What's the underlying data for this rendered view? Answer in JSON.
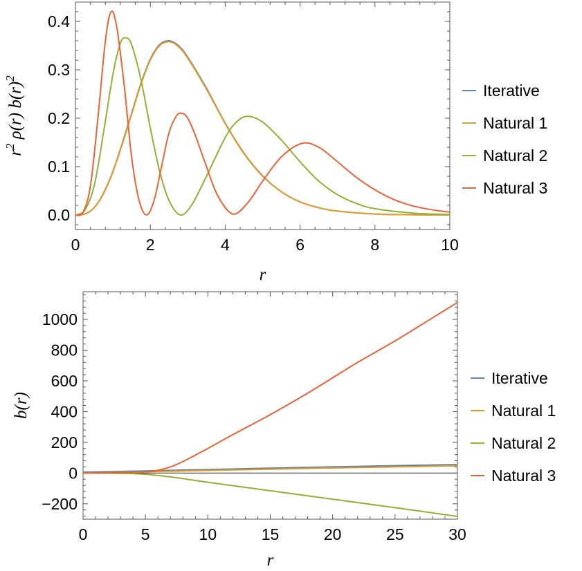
{
  "colors": {
    "Iterative": "#5E81B5",
    "Natural 1": "#E19C24",
    "Natural 2": "#8FB032",
    "Natural 3": "#EB6235"
  },
  "chart_data": [
    {
      "type": "line",
      "xlabel": "r",
      "ylabel_parts": [
        "r",
        "2",
        " ρ(r) b(r)",
        "2"
      ],
      "xlim": [
        0,
        10
      ],
      "ylim": [
        -0.03,
        0.44
      ],
      "xticks": [
        0,
        2,
        4,
        6,
        8,
        10
      ],
      "xtick_labels": [
        "0",
        "2",
        "4",
        "6",
        "8",
        "10"
      ],
      "yticks": [
        0.0,
        0.1,
        0.2,
        0.3,
        0.4
      ],
      "ytick_labels": [
        "0.0",
        "0.1",
        "0.2",
        "0.3",
        "0.4"
      ],
      "legend": "right",
      "grid": false,
      "series": [
        {
          "name": "Iterative",
          "x": [
            0,
            0.25,
            0.5,
            0.75,
            1,
            1.25,
            1.5,
            1.75,
            2,
            2.25,
            2.5,
            2.75,
            3,
            3.5,
            4,
            4.5,
            5,
            5.5,
            6,
            6.5,
            7,
            8,
            9,
            10
          ],
          "y": [
            0,
            0.002,
            0.015,
            0.045,
            0.09,
            0.148,
            0.21,
            0.272,
            0.322,
            0.352,
            0.36,
            0.35,
            0.326,
            0.262,
            0.19,
            0.128,
            0.081,
            0.048,
            0.027,
            0.015,
            0.008,
            0.002,
            0.0005,
            0
          ]
        },
        {
          "name": "Natural 1",
          "x": [
            0,
            0.25,
            0.5,
            0.75,
            1,
            1.25,
            1.5,
            1.75,
            2,
            2.25,
            2.5,
            2.75,
            3,
            3.5,
            4,
            4.5,
            5,
            5.5,
            6,
            6.5,
            7,
            8,
            9,
            10
          ],
          "y": [
            0,
            0.002,
            0.015,
            0.044,
            0.089,
            0.146,
            0.208,
            0.27,
            0.32,
            0.35,
            0.358,
            0.348,
            0.324,
            0.26,
            0.189,
            0.127,
            0.08,
            0.048,
            0.027,
            0.015,
            0.008,
            0.002,
            0.0005,
            0
          ]
        },
        {
          "name": "Natural 2",
          "x": [
            0,
            0.25,
            0.5,
            0.75,
            1,
            1.2,
            1.35,
            1.5,
            1.75,
            2,
            2.25,
            2.5,
            2.8,
            3.1,
            3.5,
            4,
            4.3,
            4.6,
            5,
            5.5,
            6,
            6.5,
            7,
            7.5,
            8,
            9,
            10
          ],
          "y": [
            0,
            0.01,
            0.06,
            0.17,
            0.29,
            0.355,
            0.366,
            0.352,
            0.28,
            0.18,
            0.09,
            0.03,
            0.0,
            0.02,
            0.08,
            0.16,
            0.192,
            0.204,
            0.192,
            0.155,
            0.11,
            0.07,
            0.042,
            0.024,
            0.013,
            0.004,
            0.001
          ]
        },
        {
          "name": "Natural 3",
          "x": [
            0,
            0.2,
            0.4,
            0.6,
            0.8,
            0.95,
            1.1,
            1.3,
            1.5,
            1.7,
            1.9,
            2.1,
            2.3,
            2.5,
            2.7,
            2.85,
            3.0,
            3.2,
            3.5,
            3.8,
            4.2,
            4.6,
            5.0,
            5.5,
            6.05,
            6.5,
            7,
            7.5,
            8,
            8.5,
            9,
            9.5,
            10
          ],
          "y": [
            0,
            0.005,
            0.06,
            0.2,
            0.36,
            0.42,
            0.39,
            0.27,
            0.12,
            0.03,
            0.0,
            0.03,
            0.1,
            0.17,
            0.205,
            0.21,
            0.2,
            0.165,
            0.1,
            0.04,
            0.002,
            0.025,
            0.07,
            0.12,
            0.148,
            0.14,
            0.11,
            0.078,
            0.052,
            0.032,
            0.019,
            0.011,
            0.006
          ]
        }
      ]
    },
    {
      "type": "line",
      "xlabel": "r",
      "ylabel": "b(r)",
      "xlim": [
        0,
        30
      ],
      "ylim": [
        -300,
        1180
      ],
      "xticks": [
        0,
        5,
        10,
        15,
        20,
        25,
        30
      ],
      "xtick_labels": [
        "0",
        "5",
        "10",
        "15",
        "20",
        "25",
        "30"
      ],
      "yticks": [
        -200,
        0,
        200,
        400,
        600,
        800,
        1000
      ],
      "ytick_labels": [
        "−200",
        "0",
        "200",
        "400",
        "600",
        "800",
        "1000"
      ],
      "legend": "right",
      "grid": false,
      "series": [
        {
          "name": "Iterative",
          "x": [
            0,
            5,
            10,
            15,
            20,
            25,
            30
          ],
          "y": [
            6,
            14,
            23,
            32,
            40,
            48,
            55
          ]
        },
        {
          "name": "Natural 1",
          "x": [
            0,
            5,
            10,
            15,
            20,
            25,
            30
          ],
          "y": [
            0,
            8,
            17,
            25,
            33,
            40,
            47
          ]
        },
        {
          "name": "Natural 2",
          "x": [
            0,
            3,
            5,
            7,
            10,
            15,
            20,
            25,
            30
          ],
          "y": [
            0,
            -2,
            -8,
            -25,
            -60,
            -115,
            -170,
            -225,
            -282
          ]
        },
        {
          "name": "Natural 3",
          "x": [
            0,
            3,
            5,
            6,
            7,
            8,
            10,
            12,
            15,
            18,
            20,
            22,
            25,
            28,
            30
          ],
          "y": [
            0,
            2,
            8,
            18,
            40,
            75,
            160,
            250,
            380,
            520,
            620,
            720,
            860,
            1010,
            1110
          ]
        }
      ]
    }
  ]
}
